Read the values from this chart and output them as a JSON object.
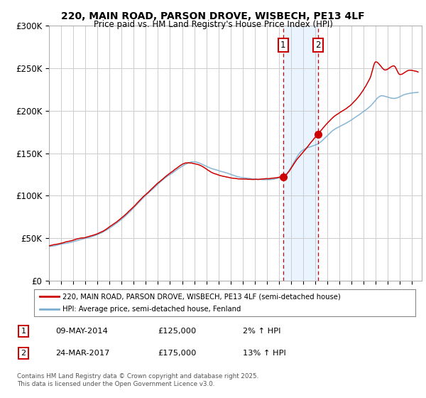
{
  "title": "220, MAIN ROAD, PARSON DROVE, WISBECH, PE13 4LF",
  "subtitle": "Price paid vs. HM Land Registry's House Price Index (HPI)",
  "legend_line1": "220, MAIN ROAD, PARSON DROVE, WISBECH, PE13 4LF (semi-detached house)",
  "legend_line2": "HPI: Average price, semi-detached house, Fenland",
  "footer": "Contains HM Land Registry data © Crown copyright and database right 2025.\nThis data is licensed under the Open Government Licence v3.0.",
  "transaction1_date": "09-MAY-2014",
  "transaction1_price": 125000,
  "transaction1_hpi": "2% ↑ HPI",
  "transaction2_date": "24-MAR-2017",
  "transaction2_price": 175000,
  "transaction2_hpi": "13% ↑ HPI",
  "ylim": [
    0,
    300000
  ],
  "yticks": [
    0,
    50000,
    100000,
    150000,
    200000,
    250000,
    300000
  ],
  "ytick_labels": [
    "£0",
    "£50K",
    "£100K",
    "£150K",
    "£200K",
    "£250K",
    "£300K"
  ],
  "red_color": "#cc0000",
  "blue_color": "#7aadcf",
  "bg_color": "#ffffff",
  "grid_color": "#cccccc",
  "shade_color": "#ddeeff",
  "t1_year": 2014.353,
  "t2_year": 2017.228,
  "t1_price": 125000,
  "t2_price": 175000
}
